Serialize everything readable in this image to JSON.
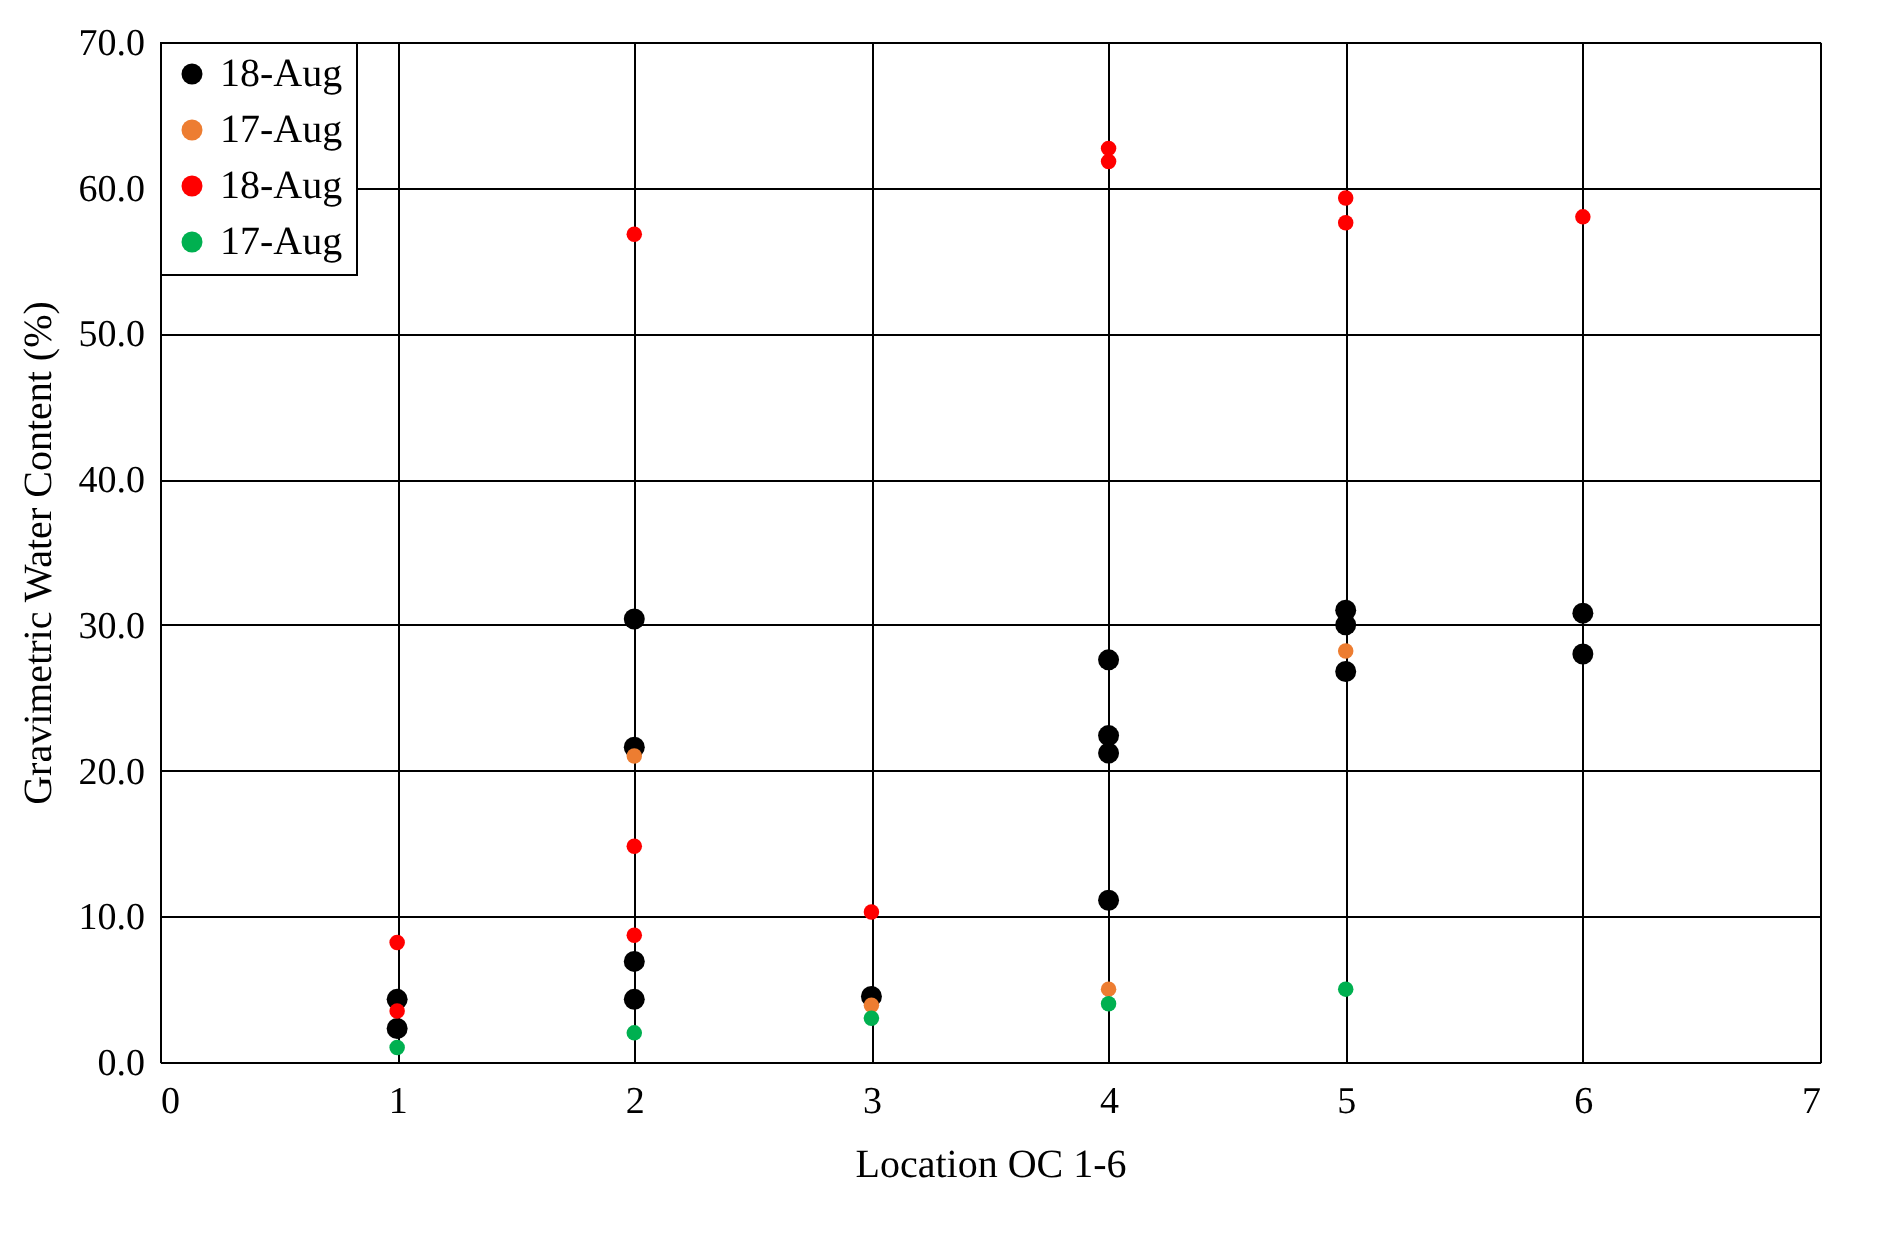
{
  "chart_data": {
    "type": "scatter",
    "xlabel": "Location OC 1-6",
    "ylabel": "Gravimetric Water Content  (%)",
    "xlim": [
      0,
      7
    ],
    "xticks": [
      0,
      1,
      2,
      3,
      4,
      5,
      6,
      7
    ],
    "ylim": [
      0,
      70
    ],
    "yticks": [
      {
        "value": 0,
        "label": "0.0"
      },
      {
        "value": 10,
        "label": "10.0"
      },
      {
        "value": 20,
        "label": "20.0"
      },
      {
        "value": 30,
        "label": "30.0"
      },
      {
        "value": 40,
        "label": "40.0"
      },
      {
        "value": 50,
        "label": "50.0"
      },
      {
        "value": 60,
        "label": "60.0"
      },
      {
        "value": 70,
        "label": "70.0"
      }
    ],
    "grid": true,
    "legend": "top left",
    "marker": "circle",
    "series": [
      {
        "name": "18-Aug",
        "color": "#000000",
        "x": [
          1,
          1,
          2,
          2,
          2,
          2,
          3,
          4,
          4,
          4,
          4,
          5,
          5,
          5,
          6,
          6
        ],
        "values": [
          4.3,
          2.3,
          30.4,
          21.6,
          6.9,
          4.3,
          4.5,
          27.6,
          22.4,
          21.2,
          11.1,
          31.0,
          30.0,
          26.8,
          30.8,
          28.0
        ]
      },
      {
        "name": "17-Aug",
        "color": "#ed7d31",
        "x": [
          2,
          3,
          4,
          5
        ],
        "values": [
          21.0,
          3.9,
          5.0,
          28.2
        ]
      },
      {
        "name": "18-Aug",
        "color": "#ff0000",
        "x": [
          1,
          1,
          2,
          2,
          2,
          3,
          4,
          4,
          5,
          5,
          6
        ],
        "values": [
          8.2,
          3.5,
          56.8,
          14.8,
          8.7,
          10.3,
          62.7,
          61.8,
          59.3,
          57.6,
          58.0
        ]
      },
      {
        "name": "17-Aug",
        "color": "#00b050",
        "x": [
          1,
          2,
          3,
          4,
          5
        ],
        "values": [
          1.0,
          2.0,
          3.0,
          4.0,
          5.0
        ]
      }
    ]
  }
}
